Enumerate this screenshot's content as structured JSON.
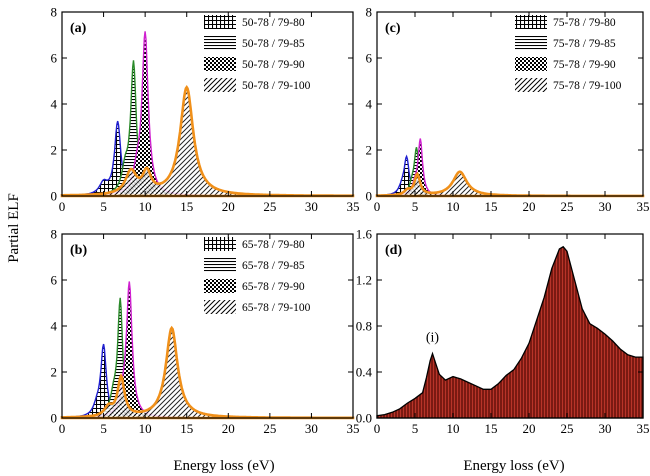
{
  "figure": {
    "ylabel": "Partial ELF",
    "xlabel": "Energy loss (eV)"
  },
  "chart_data": [
    {
      "id": "a",
      "type": "area",
      "panel_label": "(a)",
      "xlim": [
        0,
        35
      ],
      "ylim": [
        0,
        8
      ],
      "xticks": [
        0,
        5,
        10,
        15,
        20,
        25,
        30,
        35
      ],
      "yticks": [
        0,
        2,
        4,
        6,
        8
      ],
      "ytick_labels": [
        "0",
        "2",
        "4",
        "6",
        "8"
      ],
      "legend_position": "top-right",
      "series": [
        {
          "name": "50-78 / 79-80",
          "pattern": "grid",
          "color": "#1f1fd0",
          "peaks": [
            {
              "x0": 6.7,
              "amp": 3.2,
              "w": 0.45
            },
            {
              "x0": 5.0,
              "amp": 0.5,
              "w": 0.6
            }
          ]
        },
        {
          "name": "50-78 / 79-85",
          "pattern": "hlines",
          "color": "#2a8a2a",
          "peaks": [
            {
              "x0": 8.6,
              "amp": 5.7,
              "w": 0.4
            },
            {
              "x0": 7.6,
              "amp": 1.0,
              "w": 0.5
            }
          ]
        },
        {
          "name": "50-78 / 79-90",
          "pattern": "checker",
          "color": "#d020d0",
          "peaks": [
            {
              "x0": 10.0,
              "amp": 7.0,
              "w": 0.45
            },
            {
              "x0": 9.0,
              "amp": 0.8,
              "w": 0.5
            }
          ]
        },
        {
          "name": "50-78 / 79-100",
          "pattern": "diag",
          "color": "#f0901a",
          "peaks": [
            {
              "x0": 15.0,
              "amp": 4.7,
              "w": 0.95
            },
            {
              "x0": 8.3,
              "amp": 1.0,
              "w": 0.8
            },
            {
              "x0": 10.2,
              "amp": 0.9,
              "w": 0.6
            }
          ]
        }
      ]
    },
    {
      "id": "b",
      "type": "area",
      "panel_label": "(b)",
      "xlim": [
        0,
        35
      ],
      "ylim": [
        0,
        8
      ],
      "xticks": [
        0,
        5,
        10,
        15,
        20,
        25,
        30,
        35
      ],
      "yticks": [
        0,
        2,
        4,
        6,
        8
      ],
      "ytick_labels": [
        "0",
        "2",
        "4",
        "6",
        "8"
      ],
      "legend_position": "top-right",
      "series": [
        {
          "name": "65-78 / 79-80",
          "pattern": "grid",
          "color": "#1f1fd0",
          "peaks": [
            {
              "x0": 5.0,
              "amp": 3.1,
              "w": 0.4
            },
            {
              "x0": 4.2,
              "amp": 0.4,
              "w": 0.5
            }
          ]
        },
        {
          "name": "65-78 / 79-85",
          "pattern": "hlines",
          "color": "#2a8a2a",
          "peaks": [
            {
              "x0": 7.0,
              "amp": 5.0,
              "w": 0.35
            },
            {
              "x0": 6.2,
              "amp": 0.8,
              "w": 0.5
            }
          ]
        },
        {
          "name": "65-78 / 79-90",
          "pattern": "checker",
          "color": "#d020d0",
          "peaks": [
            {
              "x0": 8.1,
              "amp": 5.7,
              "w": 0.4
            },
            {
              "x0": 7.4,
              "amp": 0.7,
              "w": 0.5
            }
          ]
        },
        {
          "name": "65-78 / 79-100",
          "pattern": "diag",
          "color": "#f0901a",
          "peaks": [
            {
              "x0": 13.2,
              "amp": 3.9,
              "w": 0.85
            },
            {
              "x0": 7.1,
              "amp": 1.7,
              "w": 0.5
            },
            {
              "x0": 5.6,
              "amp": 0.4,
              "w": 0.6
            }
          ]
        }
      ]
    },
    {
      "id": "c",
      "type": "area",
      "panel_label": "(c)",
      "xlim": [
        0,
        35
      ],
      "ylim": [
        0,
        8
      ],
      "xticks": [
        0,
        5,
        10,
        15,
        20,
        25,
        30,
        35
      ],
      "yticks": [
        0,
        2,
        4,
        6,
        8
      ],
      "ytick_labels": [
        "0",
        "2",
        "4",
        "6",
        "8"
      ],
      "legend_position": "top-right",
      "series": [
        {
          "name": "75-78 / 79-80",
          "pattern": "grid",
          "color": "#1f1fd0",
          "peaks": [
            {
              "x0": 3.9,
              "amp": 1.6,
              "w": 0.4
            },
            {
              "x0": 3.3,
              "amp": 0.3,
              "w": 0.5
            }
          ]
        },
        {
          "name": "75-78 / 79-85",
          "pattern": "hlines",
          "color": "#2a8a2a",
          "peaks": [
            {
              "x0": 5.2,
              "amp": 2.0,
              "w": 0.35
            },
            {
              "x0": 4.6,
              "amp": 0.4,
              "w": 0.4
            }
          ]
        },
        {
          "name": "75-78 / 79-90",
          "pattern": "checker",
          "color": "#d020d0",
          "peaks": [
            {
              "x0": 5.7,
              "amp": 2.4,
              "w": 0.35
            },
            {
              "x0": 5.0,
              "amp": 0.4,
              "w": 0.4
            }
          ]
        },
        {
          "name": "75-78 / 79-100",
          "pattern": "diag",
          "color": "#f0901a",
          "peaks": [
            {
              "x0": 10.9,
              "amp": 1.05,
              "w": 1.1
            },
            {
              "x0": 5.3,
              "amp": 0.9,
              "w": 0.45
            },
            {
              "x0": 4.0,
              "amp": 0.2,
              "w": 0.5
            }
          ]
        }
      ]
    },
    {
      "id": "d",
      "type": "area",
      "panel_label": "(d)",
      "annotation": "(i)",
      "annotation_x": 7.3,
      "xlim": [
        0,
        35
      ],
      "ylim": [
        0,
        1.6
      ],
      "xticks": [
        0,
        5,
        10,
        15,
        20,
        25,
        30,
        35
      ],
      "yticks": [
        0,
        0.4,
        0.8,
        1.2,
        1.6
      ],
      "ytick_labels": [
        "0.0",
        "0.4",
        "0.8",
        "1.2",
        "1.6"
      ],
      "fill_color": "#7a1a12",
      "x": [
        0,
        1,
        2,
        3,
        4,
        5,
        6,
        6.5,
        7,
        7.3,
        7.7,
        8.2,
        9,
        10,
        10.5,
        11,
        12,
        13,
        14,
        15,
        16,
        17,
        18,
        19,
        20,
        21,
        22,
        23,
        24,
        24.5,
        25,
        26,
        27,
        28,
        29,
        30,
        31,
        32,
        33,
        34,
        35
      ],
      "y": [
        0.02,
        0.03,
        0.05,
        0.08,
        0.13,
        0.17,
        0.22,
        0.35,
        0.5,
        0.56,
        0.48,
        0.38,
        0.33,
        0.36,
        0.35,
        0.34,
        0.31,
        0.28,
        0.25,
        0.25,
        0.3,
        0.37,
        0.42,
        0.52,
        0.65,
        0.85,
        1.05,
        1.3,
        1.47,
        1.49,
        1.45,
        1.2,
        0.95,
        0.82,
        0.78,
        0.73,
        0.67,
        0.6,
        0.55,
        0.53,
        0.53
      ]
    }
  ]
}
